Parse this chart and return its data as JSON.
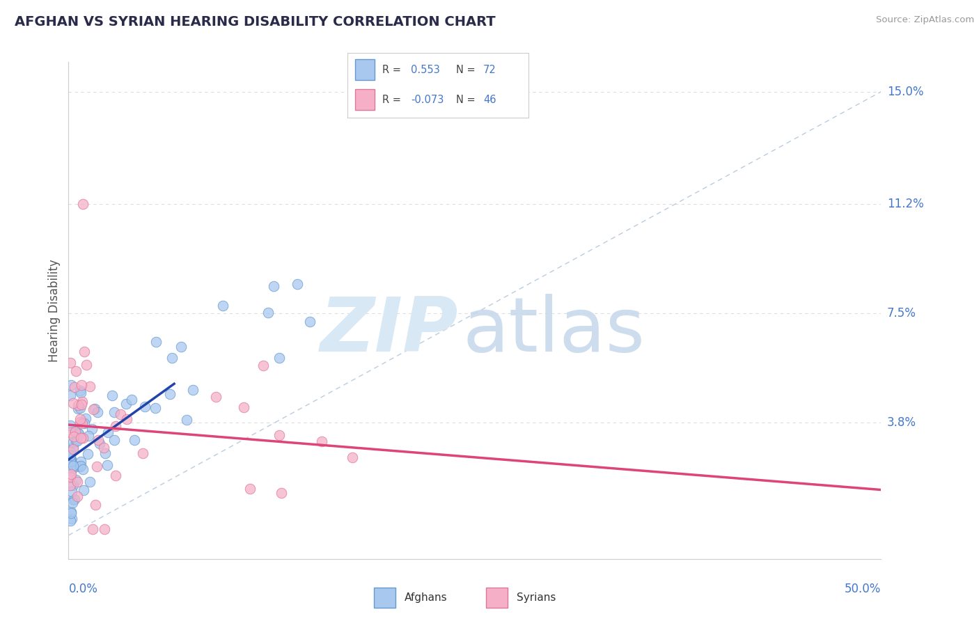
{
  "title": "AFGHAN VS SYRIAN HEARING DISABILITY CORRELATION CHART",
  "source": "Source: ZipAtlas.com",
  "ylabel": "Hearing Disability",
  "yticks": [
    0.0,
    0.038,
    0.075,
    0.112,
    0.15
  ],
  "ytick_labels": [
    "",
    "3.8%",
    "7.5%",
    "11.2%",
    "15.0%"
  ],
  "xlim": [
    0.0,
    0.5
  ],
  "ylim": [
    -0.008,
    0.16
  ],
  "afghan_color": "#a8c8f0",
  "afghan_edge": "#6699cc",
  "syrian_color": "#f5b0c8",
  "syrian_edge": "#dd7799",
  "afghan_R": 0.553,
  "afghan_N": 72,
  "syrian_R": -0.073,
  "syrian_N": 46,
  "legend_R_color": "#4477cc",
  "legend_N_color": "#333333",
  "title_color": "#2a2a4a",
  "axis_label_color": "#4477cc",
  "source_color": "#999999",
  "background_color": "#ffffff",
  "grid_color": "#dddddd",
  "diag_line_color": "#bbccdd",
  "afghan_line_color": "#2244aa",
  "syrian_line_color": "#dd4477",
  "watermark_zip_color": "#d8e8f4",
  "watermark_atlas_color": "#c5d8ec"
}
